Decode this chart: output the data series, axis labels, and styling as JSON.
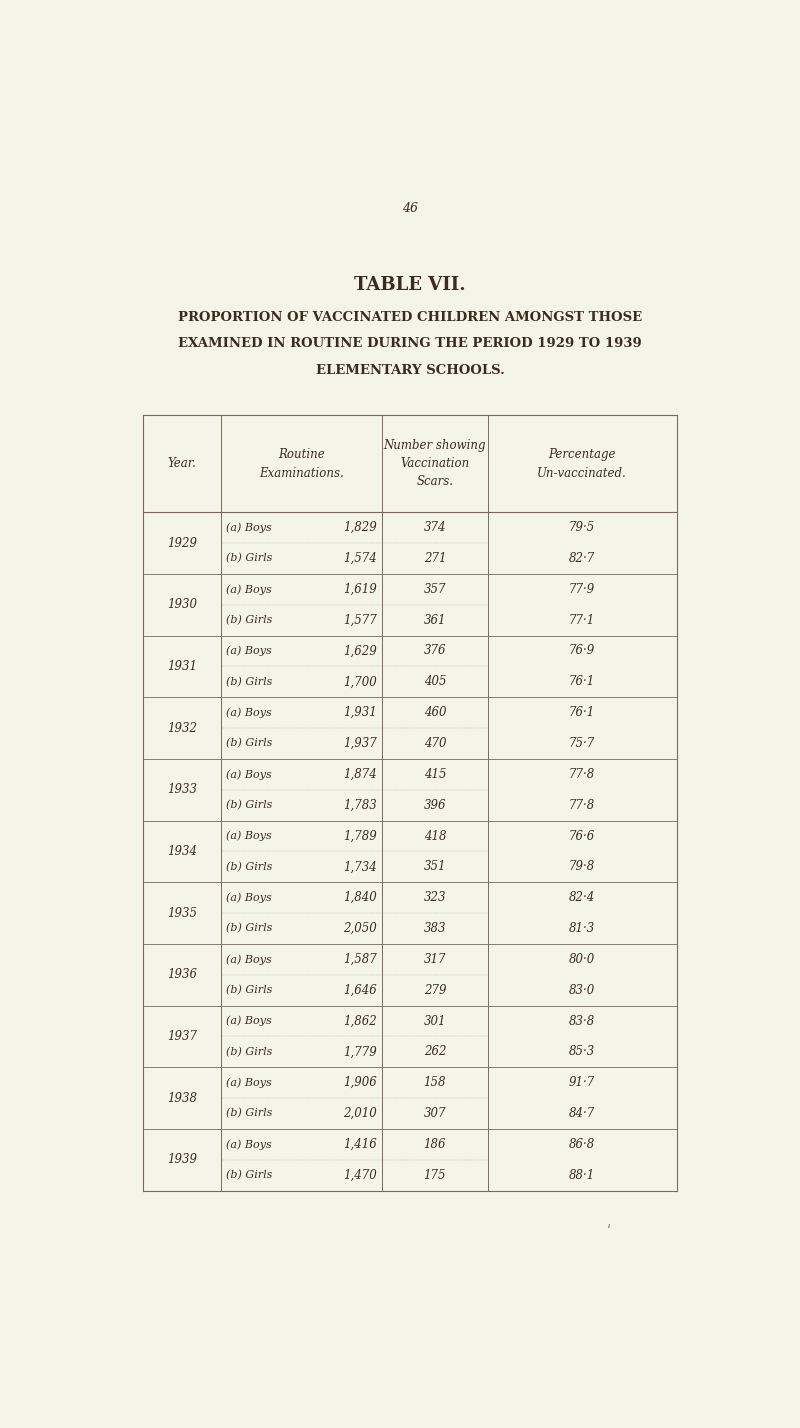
{
  "page_number": "46",
  "title": "TABLE VII.",
  "subtitle_lines": [
    "PROPORTION OF VACCINATED CHILDREN AMONGST THOSE",
    "EXAMINED IN ROUTINE DURING THE PERIOD 1929 TO 1939",
    "ELEMENTARY SCHOOLS."
  ],
  "rows": [
    [
      "1929",
      "(a) Boys",
      "1,829",
      "374",
      "79·5"
    ],
    [
      "",
      "(b) Girls",
      "1,574",
      "271",
      "82·7"
    ],
    [
      "1930",
      "(a) Boys",
      "1,619",
      "357",
      "77·9"
    ],
    [
      "",
      "(b) Girls",
      "1,577",
      "361",
      "77·1"
    ],
    [
      "1931",
      "(a) Boys",
      "1,629",
      "376",
      "76·9"
    ],
    [
      "",
      "(b) Girls",
      "1,700",
      "405",
      "76·1"
    ],
    [
      "1932",
      "(a) Boys",
      "1,931",
      "460",
      "76·1"
    ],
    [
      "",
      "(b) Girls",
      "1,937",
      "470",
      "75·7"
    ],
    [
      "1933",
      "(a) Boys",
      "1,874",
      "415",
      "77·8"
    ],
    [
      "",
      "(b) Girls",
      "1,783",
      "396",
      "77·8"
    ],
    [
      "1934",
      "(a) Boys",
      "1,789",
      "418",
      "76·6"
    ],
    [
      "",
      "(b) Girls",
      "1,734",
      "351",
      "79·8"
    ],
    [
      "1935",
      "(a) Boys",
      "1,840",
      "323",
      "82·4"
    ],
    [
      "",
      "(b) Girls",
      "2,050",
      "383",
      "81·3"
    ],
    [
      "1936",
      "(a) Boys",
      "1,587",
      "317",
      "80·0"
    ],
    [
      "",
      "(b) Girls",
      "1,646",
      "279",
      "83·0"
    ],
    [
      "1937",
      "(a) Boys",
      "1,862",
      "301",
      "83·8"
    ],
    [
      "",
      "(b) Girls",
      "1,779",
      "262",
      "85·3"
    ],
    [
      "1938",
      "(a) Boys",
      "1,906",
      "158",
      "91·7"
    ],
    [
      "",
      "(b) Girls",
      "2,010",
      "307",
      "84·7"
    ],
    [
      "1939",
      "(a) Boys",
      "1,416",
      "186",
      "86·8"
    ],
    [
      "",
      "(b) Girls",
      "1,470",
      "175",
      "88·1"
    ]
  ],
  "bg_color": "#f5f4e8",
  "text_color": "#3d2b1f",
  "line_color": "#7a6a5a",
  "font_size_title": 13,
  "font_size_subtitle": 9.5,
  "font_size_header": 8.5,
  "font_size_body": 8.5,
  "font_size_page": 9
}
